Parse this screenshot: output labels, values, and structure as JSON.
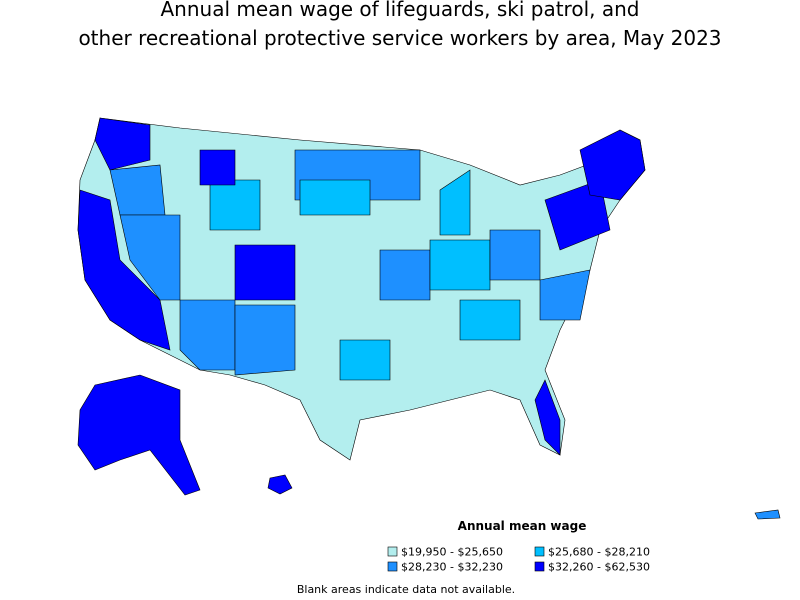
{
  "title": [
    "Annual mean wage of lifeguards, ski patrol, and",
    "other recreational protective service workers by area, May 2023"
  ],
  "legend": {
    "title": "Annual mean wage",
    "items": [
      {
        "label": "$19,950 - $25,650",
        "color": "#b3eeee"
      },
      {
        "label": "$25,680 - $28,210",
        "color": "#00bfff"
      },
      {
        "label": "$28,230 - $32,230",
        "color": "#1e90ff"
      },
      {
        "label": "$32,260 - $62,530",
        "color": "#0000ff"
      }
    ]
  },
  "note": "Blank areas indicate data not available."
}
